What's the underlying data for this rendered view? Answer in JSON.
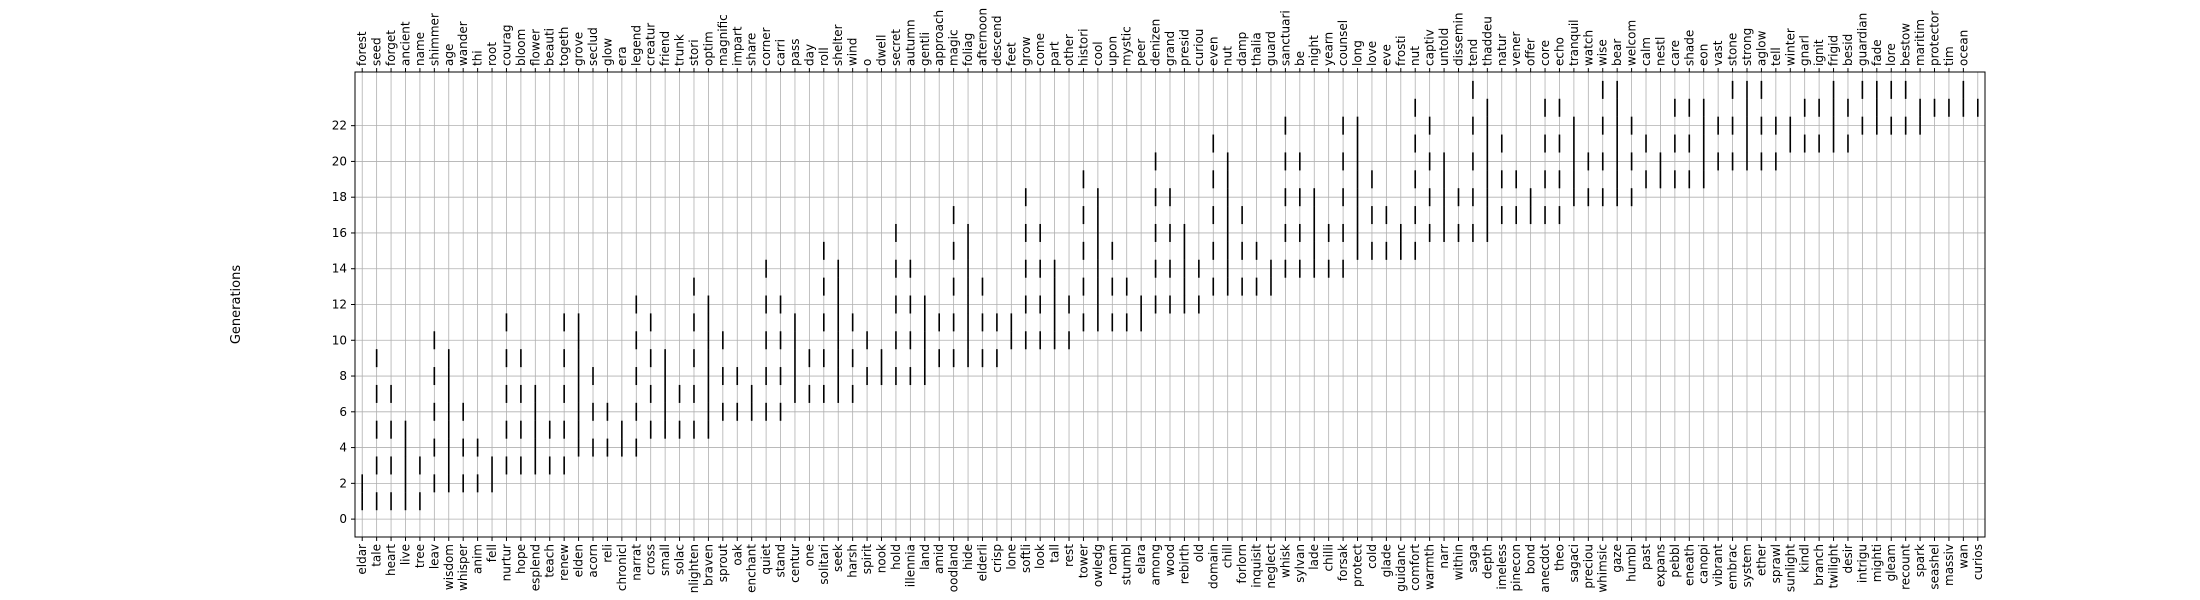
{
  "chart_data": {
    "type": "scatter",
    "xlabel": "",
    "ylabel": "Generations",
    "ylim": [
      -1,
      25
    ],
    "yticks": [
      0,
      2,
      4,
      6,
      8,
      10,
      12,
      14,
      16,
      18,
      20,
      22
    ],
    "grid": true,
    "bottom_tick_labels": [
      "eldar",
      "tale",
      "heart",
      "live",
      "tree",
      "leav",
      "wisdom",
      "whisper",
      "anim",
      "fell",
      "nurtur",
      "hope",
      "esplend",
      "teach",
      "renew",
      "elden",
      "acorn",
      "reli",
      "chronicl",
      "narrat",
      "cross",
      "small",
      "solac",
      "nlighten",
      "braven",
      "sprout",
      "oak",
      "enchant",
      "quiet",
      "stand",
      "centur",
      "one",
      "solitari",
      "seek",
      "harsh",
      "spirit",
      "nook",
      "hold",
      "illennia",
      "land",
      "amid",
      "oodland",
      "hide",
      "elderli",
      "crisp",
      "lone",
      "softli",
      "look",
      "tall",
      "rest",
      "tower",
      "owledg",
      "roam",
      "stumbl",
      "elara",
      "among",
      "wood",
      "rebirth",
      "old",
      "domain",
      "chill",
      "forlorn",
      "inquisit",
      "neglect",
      "whisk",
      "sylvan",
      "lade",
      "chilli",
      "forsak",
      "protect",
      "cold",
      "glade",
      "guidanc",
      "comfort",
      "warmth",
      "narr",
      "within",
      "saga",
      "depth",
      "imeless",
      "pinecon",
      "bond",
      "anecdot",
      "theo",
      "sagaci",
      "preciou",
      "whimsic",
      "gaze",
      "humbl",
      "past",
      "expans",
      "pebbl",
      "eneath",
      "canopi",
      "vibrant",
      "embrac",
      "system",
      "ether",
      "sprawl",
      "sunlight",
      "kindl",
      "branch",
      "twilight",
      "desir",
      "intrigu",
      "mighti",
      "gleam",
      "recount",
      "spark",
      "seashel",
      "massiv",
      "wan",
      "curios"
    ],
    "top_tick_labels": [
      "forest",
      "seed",
      "forget",
      "ancient",
      "name",
      "shimmer",
      "age",
      "wander",
      "thi",
      "root",
      "courag",
      "bloom",
      "flower",
      "beauti",
      "togeth",
      "grove",
      "seclud",
      "glow",
      "era",
      "legend",
      "creatur",
      "friend",
      "trunk",
      "stori",
      "optim",
      "magnific",
      "impart",
      "share",
      "corner",
      "carri",
      "pass",
      "day",
      "roll",
      "shelter",
      "wind",
      "o",
      "dwell",
      "secret",
      "autumn",
      "gentli",
      "approach",
      "magic",
      "foliag",
      "afternoon",
      "descend",
      "feet",
      "grow",
      "come",
      "part",
      "other",
      "histori",
      "cool",
      "upon",
      "mystic",
      "peer",
      "denizen",
      "grand",
      "presid",
      "curiou",
      "even",
      "nut",
      "damp",
      "thalia",
      "guard",
      "sanctuari",
      "be",
      "night",
      "yearn",
      "counsel",
      "long",
      "love",
      "eve",
      "frosti",
      "nut",
      "captiv",
      "untold",
      "dissemin",
      "tend",
      "thaddeu",
      "natur",
      "vener",
      "offer",
      "core",
      "echo",
      "tranquil",
      "watch",
      "wise",
      "bear",
      "welcom",
      "calm",
      "nestl",
      "care",
      "shade",
      "eon",
      "vast",
      "stone",
      "strong",
      "aglow",
      "tell",
      "winter",
      "gnarl",
      "ignit",
      "frigid",
      "besid",
      "guardian",
      "fade",
      "lore",
      "bestow",
      "maritim",
      "protector",
      "tim",
      "ocean"
    ]
  }
}
